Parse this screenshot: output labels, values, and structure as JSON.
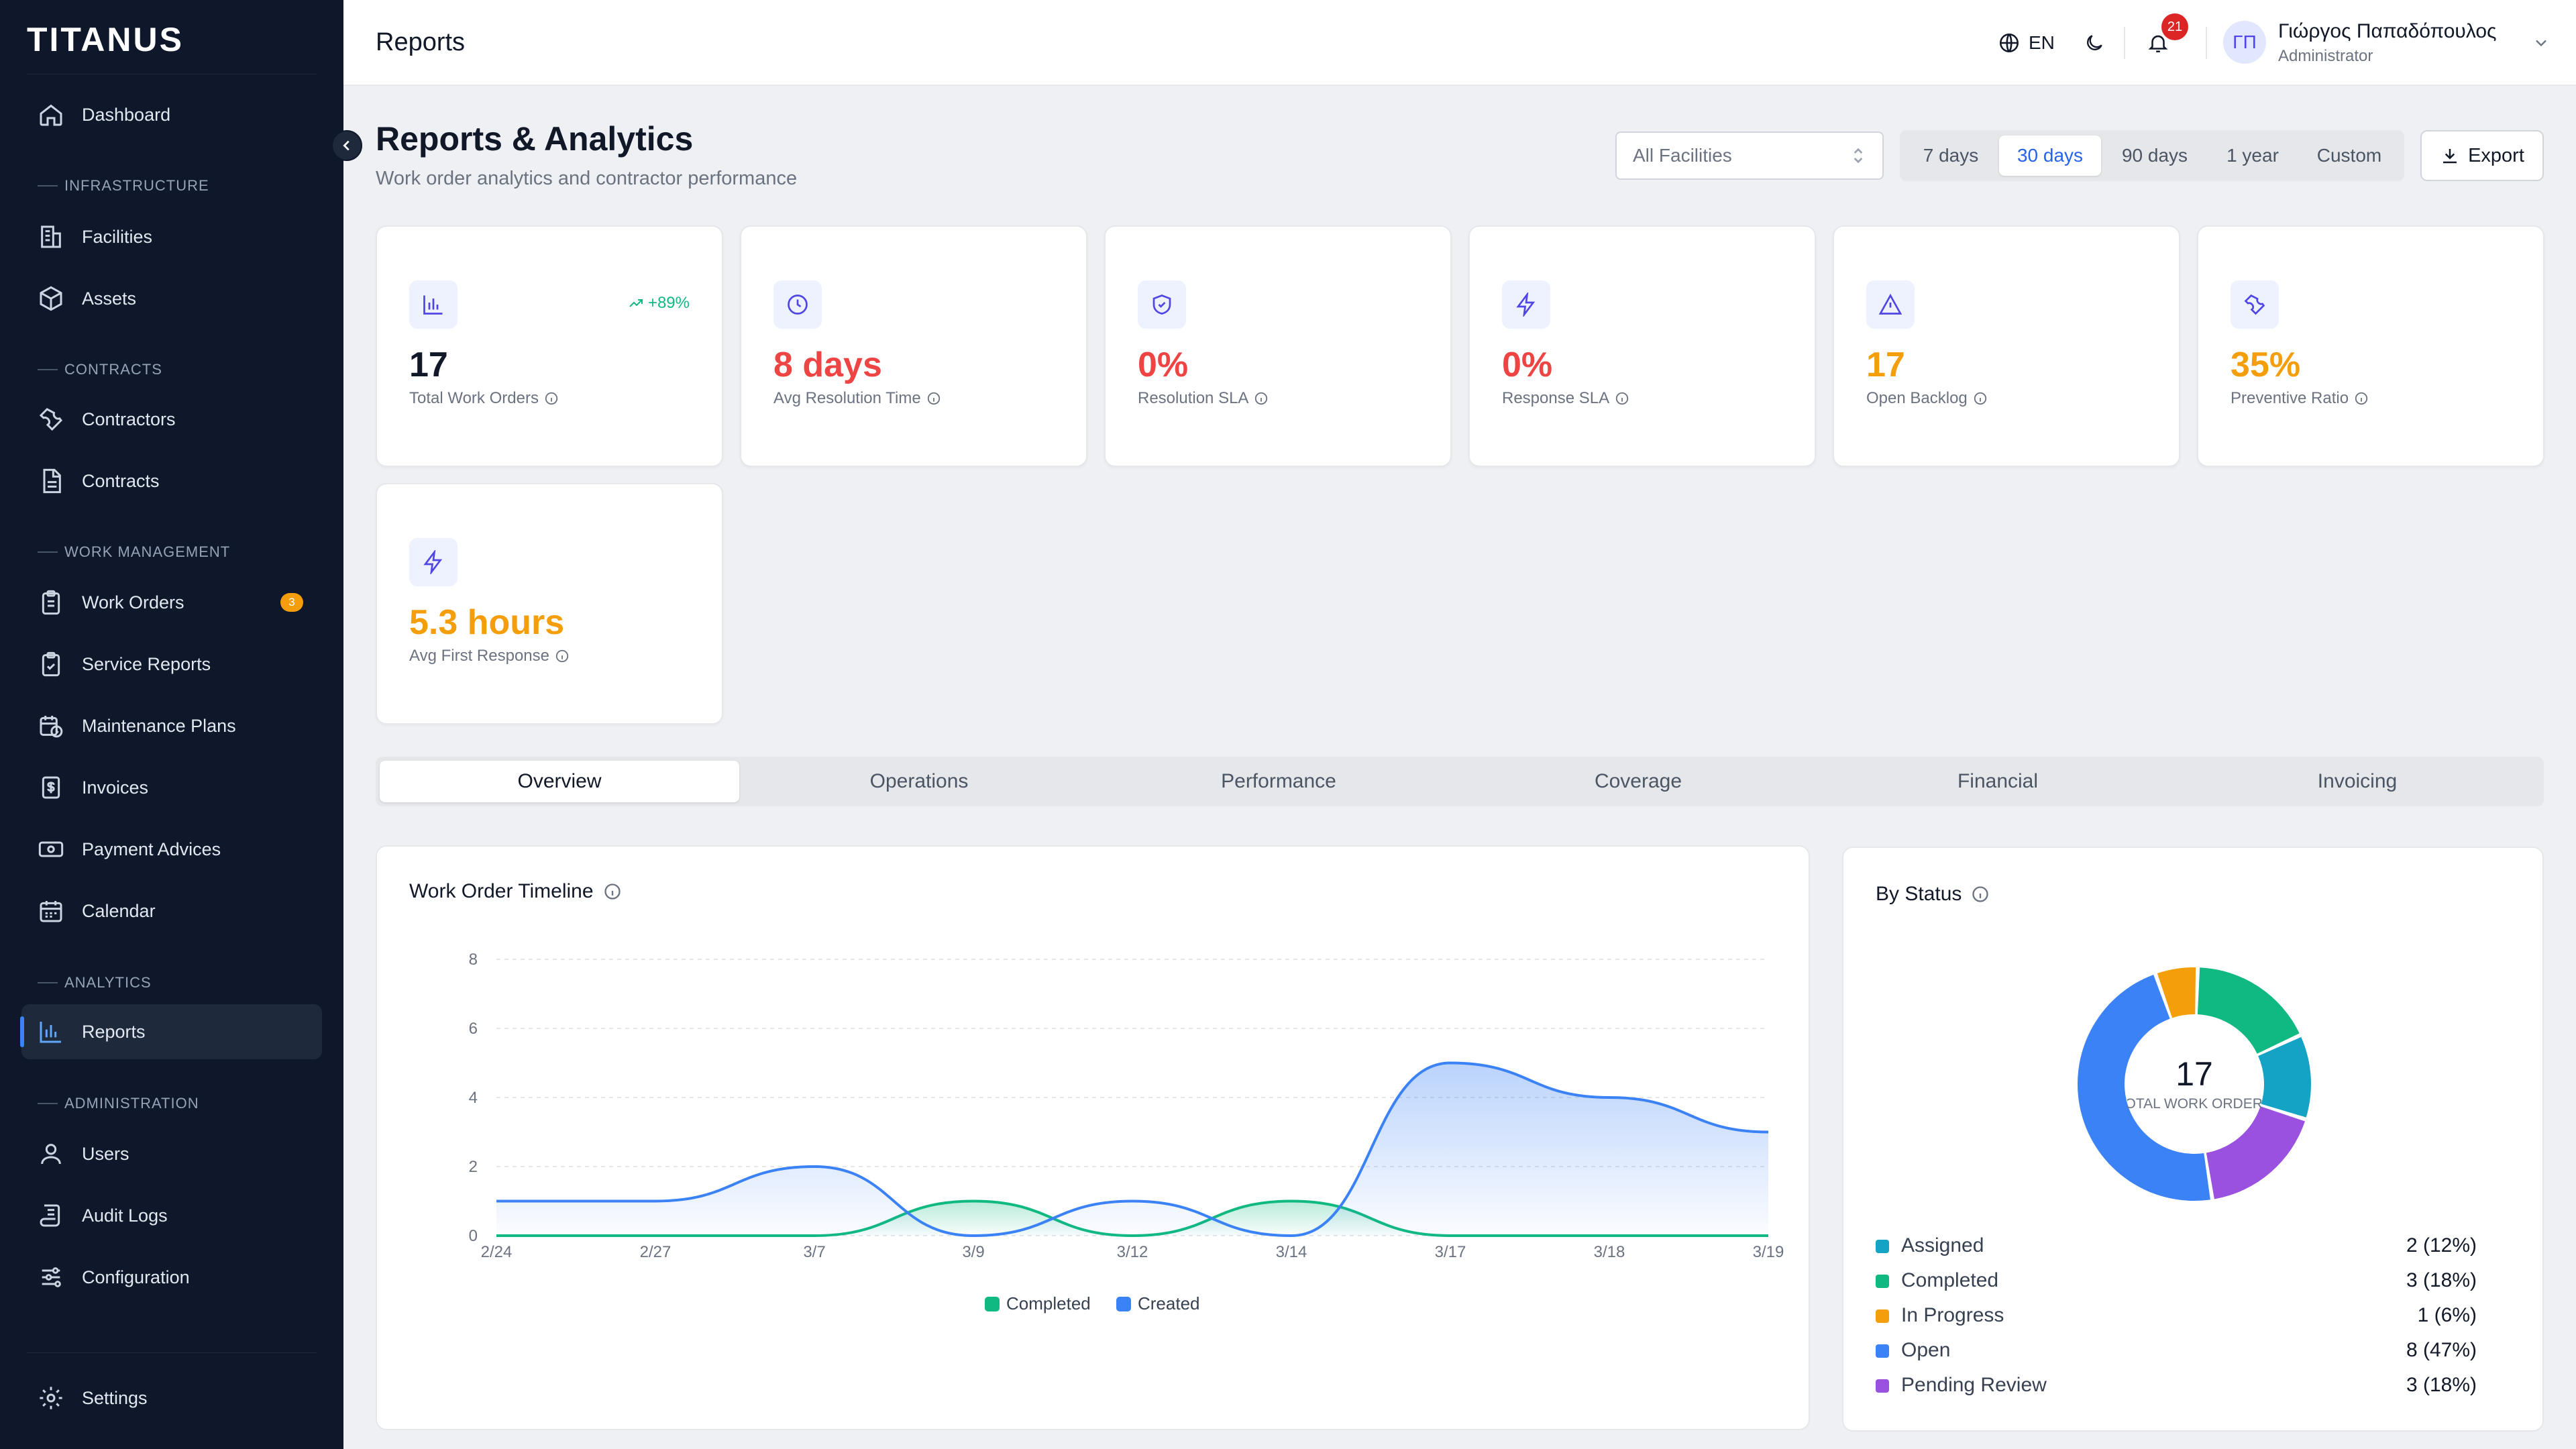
{
  "app": {
    "name": "TITANUS"
  },
  "sidebar": {
    "items": {
      "dashboard": "Dashboard",
      "facilities": "Facilities",
      "assets": "Assets",
      "contractors": "Contractors",
      "contracts": "Contracts",
      "work_orders": "Work Orders",
      "work_orders_badge": "3",
      "service_reports": "Service Reports",
      "maintenance_plans": "Maintenance Plans",
      "invoices": "Invoices",
      "payment_advices": "Payment Advices",
      "calendar": "Calendar",
      "reports": "Reports",
      "users": "Users",
      "audit_logs": "Audit Logs",
      "configuration": "Configuration",
      "settings": "Settings"
    },
    "sections": {
      "infrastructure": "INFRASTRUCTURE",
      "contracts": "CONTRACTS",
      "work_management": "WORK MANAGEMENT",
      "analytics": "ANALYTICS",
      "administration": "ADMINISTRATION"
    },
    "active_item": "reports"
  },
  "header": {
    "title": "Reports",
    "language": "EN",
    "notifications_count": "21",
    "user": {
      "initials": "ΓΠ",
      "name": "Γιώργος Παπαδόπουλος",
      "role": "Administrator"
    }
  },
  "page": {
    "title": "Reports & Analytics",
    "subtitle": "Work order analytics and contractor performance",
    "facility_filter": "All Facilities",
    "ranges": [
      "7 days",
      "30 days",
      "90 days",
      "1 year",
      "Custom"
    ],
    "active_range": "30 days",
    "export_label": "Export"
  },
  "kpis": [
    {
      "value": "17",
      "label": "Total Work Orders",
      "trend": "+89%",
      "icon": "bar-chart-icon",
      "color": "#111827"
    },
    {
      "value": "8 days",
      "label": "Avg Resolution Time",
      "icon": "clock-icon",
      "color": "#ef4444"
    },
    {
      "value": "0%",
      "label": "Resolution SLA",
      "icon": "shield-check-icon",
      "color": "#ef4444"
    },
    {
      "value": "0%",
      "label": "Response SLA",
      "icon": "lightning-icon",
      "color": "#ef4444"
    },
    {
      "value": "17",
      "label": "Open Backlog",
      "icon": "warning-triangle-icon",
      "color": "#f59e0b"
    },
    {
      "value": "35%",
      "label": "Preventive Ratio",
      "icon": "wrench-icon",
      "color": "#f59e0b"
    },
    {
      "value": "5.3 hours",
      "label": "Avg First Response",
      "icon": "lightning-icon",
      "color": "#f59e0b"
    }
  ],
  "tabs": [
    "Overview",
    "Operations",
    "Performance",
    "Coverage",
    "Financial",
    "Invoicing"
  ],
  "active_tab": "Overview",
  "timeline": {
    "title": "Work Order Timeline",
    "chart_data": {
      "type": "area",
      "categories": [
        "2/24",
        "2/27",
        "3/7",
        "3/9",
        "3/12",
        "3/14",
        "3/17",
        "3/18",
        "3/19"
      ],
      "ylim": [
        0,
        8
      ],
      "yticks": [
        "0",
        "2",
        "4",
        "6",
        "8"
      ],
      "grid": true,
      "legend": "bottom",
      "series": [
        {
          "name": "Completed",
          "color": "#10b981",
          "values": [
            0,
            0,
            0,
            1,
            0,
            1,
            0,
            0,
            0
          ]
        },
        {
          "name": "Created",
          "color": "#3b82f6",
          "values": [
            1,
            1,
            2,
            0,
            1,
            0,
            5,
            4,
            3
          ]
        }
      ]
    }
  },
  "status": {
    "title": "By Status",
    "total": "17",
    "total_label": "TOTAL WORK ORDERS",
    "chart_data": {
      "type": "pie",
      "slices": [
        {
          "name": "Assigned",
          "value": 2,
          "display": "2 (12%)",
          "color": "#14a3c4"
        },
        {
          "name": "Completed",
          "value": 3,
          "display": "3 (18%)",
          "color": "#10b981"
        },
        {
          "name": "In Progress",
          "value": 1,
          "display": "1 (6%)",
          "color": "#f59e0b"
        },
        {
          "name": "Open",
          "value": 8,
          "display": "8 (47%)",
          "color": "#3b82f6"
        },
        {
          "name": "Pending Review",
          "value": 3,
          "display": "3 (18%)",
          "color": "#9b51e0"
        }
      ]
    }
  }
}
